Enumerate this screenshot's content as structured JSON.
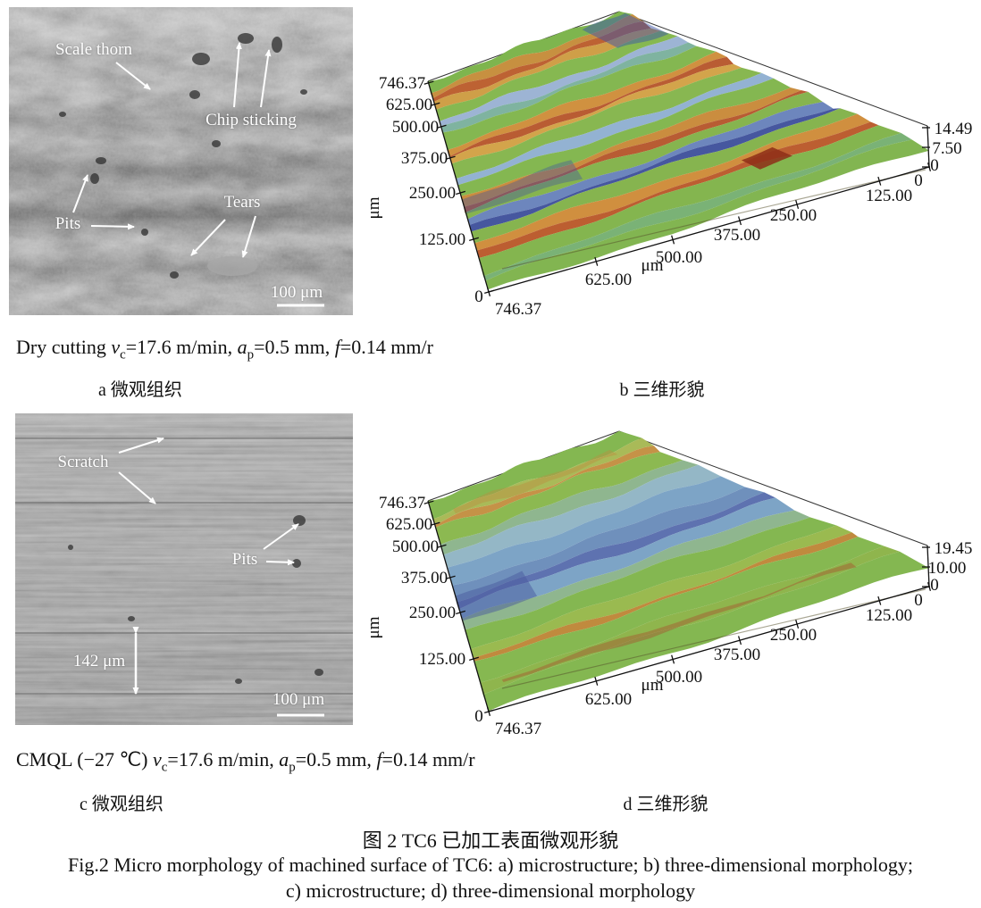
{
  "figure_captions": {
    "zh": "图 2  TC6 已加工表面微观形貌",
    "en_line1": "Fig.2 Micro morphology of machined surface of TC6: a) microstructure; b) three-dimensional morphology;",
    "en_line2": "c) microstructure; d) three-dimensional morphology"
  },
  "row1": {
    "condition": [
      {
        "t": "Dry cutting "
      },
      {
        "t": "v",
        "i": true
      },
      {
        "t": "c",
        "sub": true
      },
      {
        "t": "=17.6 m/min, "
      },
      {
        "t": "a",
        "i": true
      },
      {
        "t": "p",
        "sub": true
      },
      {
        "t": "=0.5 mm, "
      },
      {
        "t": "f",
        "i": true
      },
      {
        "t": "=0.14 mm/r"
      }
    ],
    "label_a": "a 微观组织",
    "label_b": "b 三维形貌",
    "sem_annotations": {
      "scale_thorn": "Scale thorn",
      "chip_sticking": "Chip sticking",
      "pits": "Pits",
      "tears": "Tears",
      "scale_bar": "100 μm"
    },
    "plot": {
      "y_ticks": [
        "746.37",
        "625.00",
        "500.00",
        "375.00",
        "250.00",
        "125.00",
        "0"
      ],
      "x_ticks": [
        "746.37",
        "625.00",
        "500.00",
        "375.00",
        "250.00",
        "125.00",
        "0"
      ],
      "z_ticks": [
        "14.49",
        "7.50",
        "0"
      ],
      "y_unit": "μm",
      "x_unit": "μm",
      "bands": [
        [
          "#7eb54e",
          2.0
        ],
        [
          "#c79040",
          1.6
        ],
        [
          "#bd6233",
          1.2
        ],
        [
          "#cf9f48",
          1.4
        ],
        [
          "#86b851",
          2.6
        ],
        [
          "#9db4d4",
          1.6
        ],
        [
          "#7fb3a0",
          1.2
        ],
        [
          "#84b751",
          3.0
        ],
        [
          "#d09140",
          1.6
        ],
        [
          "#b95c33",
          1.0
        ],
        [
          "#d3a44b",
          1.2
        ],
        [
          "#88b751",
          3.0
        ],
        [
          "#93b2d2",
          1.8
        ],
        [
          "#84b751",
          2.6
        ],
        [
          "#ca8d3f",
          1.6
        ],
        [
          "#b85c33",
          1.0
        ],
        [
          "#86b44f",
          2.2
        ],
        [
          "#6d86bd",
          1.6
        ],
        [
          "#46579f",
          1.0
        ],
        [
          "#86b44f",
          2.6
        ],
        [
          "#d08f3f",
          2.0
        ],
        [
          "#bc5e31",
          1.2
        ],
        [
          "#84b54f",
          3.4
        ],
        [
          "#7ab276",
          1.6
        ],
        [
          "#82b551",
          2.6
        ]
      ],
      "accents": [
        {
          "t": [
            0.02,
            0.16
          ],
          "u": [
            0.78,
            1.0
          ],
          "c": "#3c55aa",
          "o": 0.5
        },
        {
          "t": [
            0.56,
            0.64
          ],
          "u": [
            0.0,
            0.33
          ],
          "c": "#44549f",
          "o": 0.4
        },
        {
          "t": [
            0.78,
            0.86
          ],
          "u": [
            0.69,
            0.77
          ],
          "c": "#8e2e17",
          "o": 0.85
        }
      ]
    }
  },
  "row2": {
    "condition": [
      {
        "t": "CMQL (−27 ℃) "
      },
      {
        "t": "v",
        "i": true
      },
      {
        "t": "c",
        "sub": true
      },
      {
        "t": "=17.6 m/min, "
      },
      {
        "t": "a",
        "i": true
      },
      {
        "t": "p",
        "sub": true
      },
      {
        "t": "=0.5 mm, "
      },
      {
        "t": "f",
        "i": true
      },
      {
        "t": "=0.14 mm/r"
      }
    ],
    "label_c": "c 微观组织",
    "label_d": "d 三维形貌",
    "sem_annotations": {
      "scratch": "Scratch",
      "pits": "Pits",
      "width_marker": "142 μm",
      "scale_bar": "100 μm"
    },
    "plot": {
      "y_ticks": [
        "746.37",
        "625.00",
        "500.00",
        "375.00",
        "250.00",
        "125.00",
        "0"
      ],
      "x_ticks": [
        "746.37",
        "625.00",
        "500.00",
        "375.00",
        "250.00",
        "125.00",
        "0"
      ],
      "z_ticks": [
        "19.45",
        "10.00",
        "0"
      ],
      "y_unit": "μm",
      "x_unit": "μm",
      "bands": [
        [
          "#84b751",
          2.6
        ],
        [
          "#a9ba58",
          1.4
        ],
        [
          "#c59247",
          0.7
        ],
        [
          "#8cb951",
          2.6
        ],
        [
          "#8fb68f",
          1.8
        ],
        [
          "#94b7c6",
          2.6
        ],
        [
          "#7da4c6",
          2.8
        ],
        [
          "#6f90bc",
          2.2
        ],
        [
          "#5e72b0",
          1.3
        ],
        [
          "#7da4c6",
          2.2
        ],
        [
          "#8fb68f",
          1.8
        ],
        [
          "#84b751",
          3.0
        ],
        [
          "#9aba50",
          1.8
        ],
        [
          "#c08a3e",
          0.7
        ],
        [
          "#86b851",
          3.0
        ],
        [
          "#8fb54d",
          1.8
        ],
        [
          "#84b751",
          3.4
        ]
      ],
      "accents": [
        {
          "t": [
            0.45,
            0.58
          ],
          "u": [
            0.0,
            0.22
          ],
          "c": "#4a5a9e",
          "o": 0.5
        },
        {
          "t": [
            0.88,
            0.9
          ],
          "u": [
            0.05,
            0.9
          ],
          "c": "#a8542e",
          "o": 0.45
        },
        {
          "t": [
            0.07,
            0.1
          ],
          "u": [
            0.1,
            0.85
          ],
          "c": "#c08a3e",
          "o": 0.4
        }
      ]
    }
  }
}
